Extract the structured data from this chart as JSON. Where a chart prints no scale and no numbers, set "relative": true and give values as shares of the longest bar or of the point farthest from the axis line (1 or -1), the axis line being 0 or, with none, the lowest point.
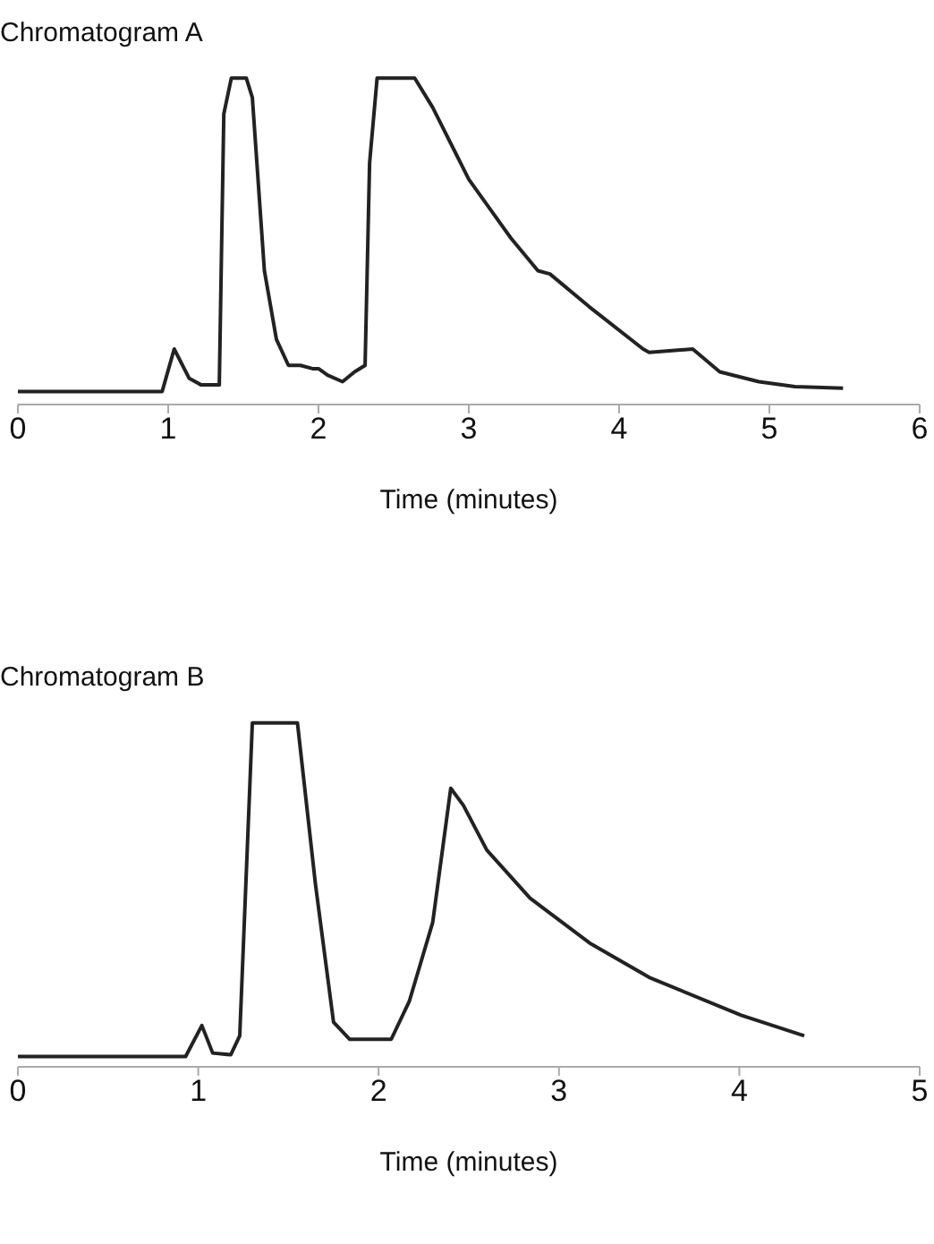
{
  "chart_data": [
    {
      "type": "line",
      "title": "Chromatogram A",
      "xlabel": "Time (minutes)",
      "relative": true,
      "xlim": [
        0,
        6
      ],
      "xticks": [
        0,
        1,
        2,
        3,
        4,
        5,
        6
      ],
      "grid": false,
      "legend": false,
      "marker": "none",
      "line_style": "solid",
      "series": [
        {
          "color": "#222222",
          "x": [
            0,
            0.96,
            1.04,
            1.14,
            1.22,
            1.34,
            1.37,
            1.42,
            1.52,
            1.56,
            1.64,
            1.72,
            1.8,
            1.88,
            1.96,
            2.0,
            2.06,
            2.16,
            2.24,
            2.31,
            2.34,
            2.39,
            2.64,
            2.76,
            3.0,
            3.28,
            3.46,
            3.54,
            3.8,
            4.16,
            4.2,
            4.49,
            4.67,
            4.93,
            5.17,
            5.49
          ],
          "values": [
            0.04,
            0.04,
            0.17,
            0.08,
            0.06,
            0.06,
            0.89,
            1,
            1,
            0.94,
            0.41,
            0.2,
            0.12,
            0.12,
            0.11,
            0.11,
            0.09,
            0.07,
            0.1,
            0.12,
            0.74,
            1,
            1,
            0.91,
            0.69,
            0.51,
            0.41,
            0.4,
            0.3,
            0.17,
            0.16,
            0.17,
            0.1,
            0.07,
            0.055,
            0.05
          ]
        }
      ]
    },
    {
      "type": "line",
      "title": "Chromatogram B",
      "xlabel": "Time (minutes)",
      "relative": true,
      "xlim": [
        0,
        5
      ],
      "xticks": [
        0,
        1,
        2,
        3,
        4,
        5
      ],
      "grid": false,
      "legend": false,
      "marker": "none",
      "line_style": "solid",
      "series": [
        {
          "color": "#222222",
          "x": [
            0,
            0.93,
            1.02,
            1.08,
            1.18,
            1.23,
            1.27,
            1.3,
            1.55,
            1.65,
            1.75,
            1.84,
            2.07,
            2.17,
            2.3,
            2.4,
            2.47,
            2.6,
            2.84,
            3.17,
            3.5,
            4.01,
            4.36
          ],
          "values": [
            0.03,
            0.03,
            0.12,
            0.04,
            0.035,
            0.09,
            0.61,
            1,
            1,
            0.53,
            0.13,
            0.08,
            0.08,
            0.19,
            0.42,
            0.81,
            0.76,
            0.63,
            0.49,
            0.36,
            0.26,
            0.15,
            0.09
          ]
        }
      ]
    }
  ]
}
